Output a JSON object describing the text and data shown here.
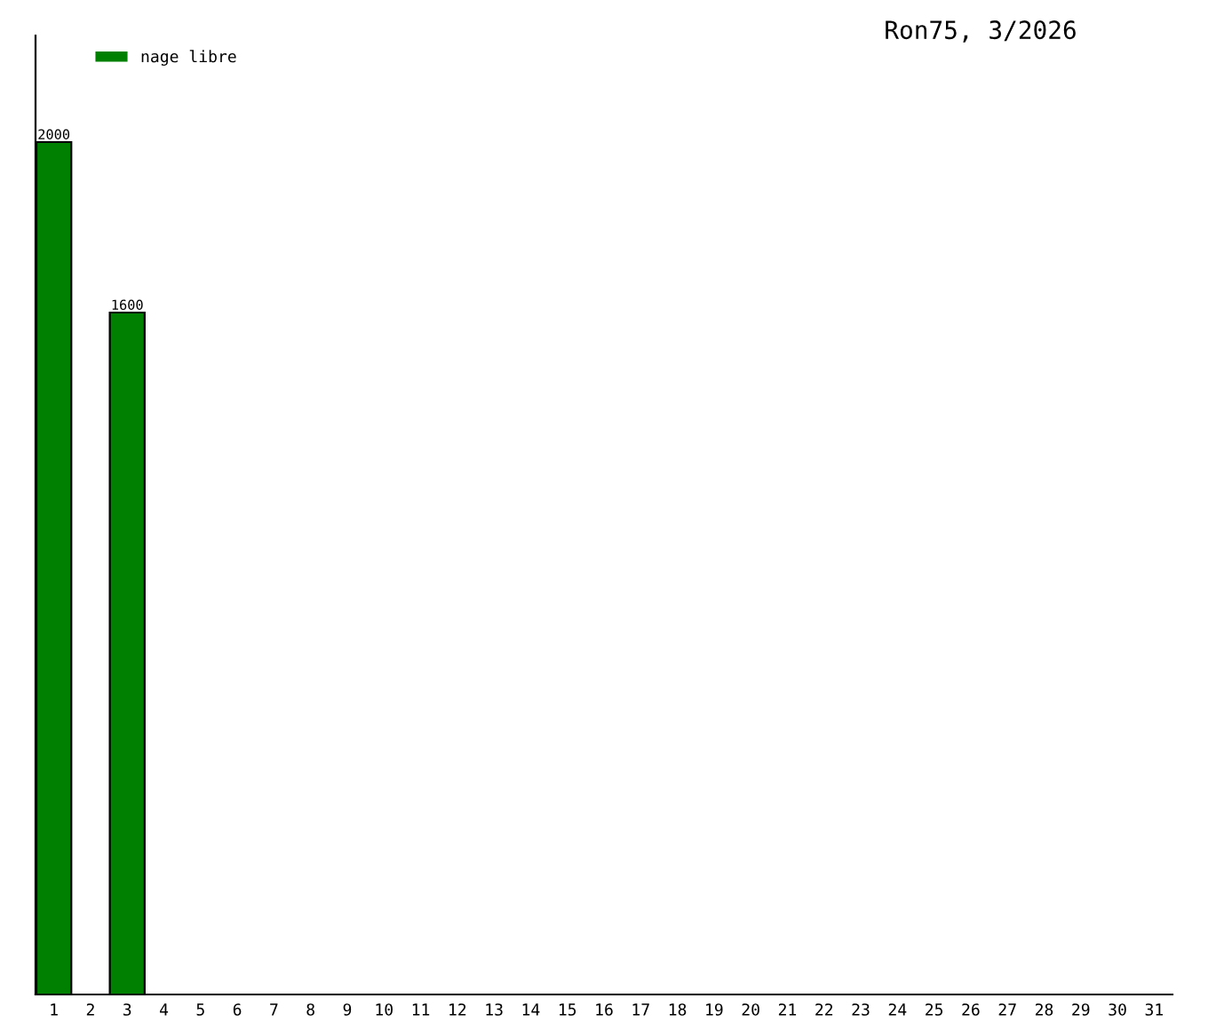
{
  "chart_data": {
    "type": "bar",
    "title": "Ron75, 3/2026",
    "categories": [
      "1",
      "2",
      "3",
      "4",
      "5",
      "6",
      "7",
      "8",
      "9",
      "10",
      "11",
      "12",
      "13",
      "14",
      "15",
      "16",
      "17",
      "18",
      "19",
      "20",
      "21",
      "22",
      "23",
      "24",
      "25",
      "26",
      "27",
      "28",
      "29",
      "30",
      "31"
    ],
    "series": [
      {
        "name": "nage libre",
        "color": "#008000",
        "values": [
          2000,
          null,
          1600,
          null,
          null,
          null,
          null,
          null,
          null,
          null,
          null,
          null,
          null,
          null,
          null,
          null,
          null,
          null,
          null,
          null,
          null,
          null,
          null,
          null,
          null,
          null,
          null,
          null,
          null,
          null,
          null
        ]
      }
    ],
    "data_labels": true,
    "legend": "top left",
    "grid": false,
    "tick_labels": "x"
  }
}
